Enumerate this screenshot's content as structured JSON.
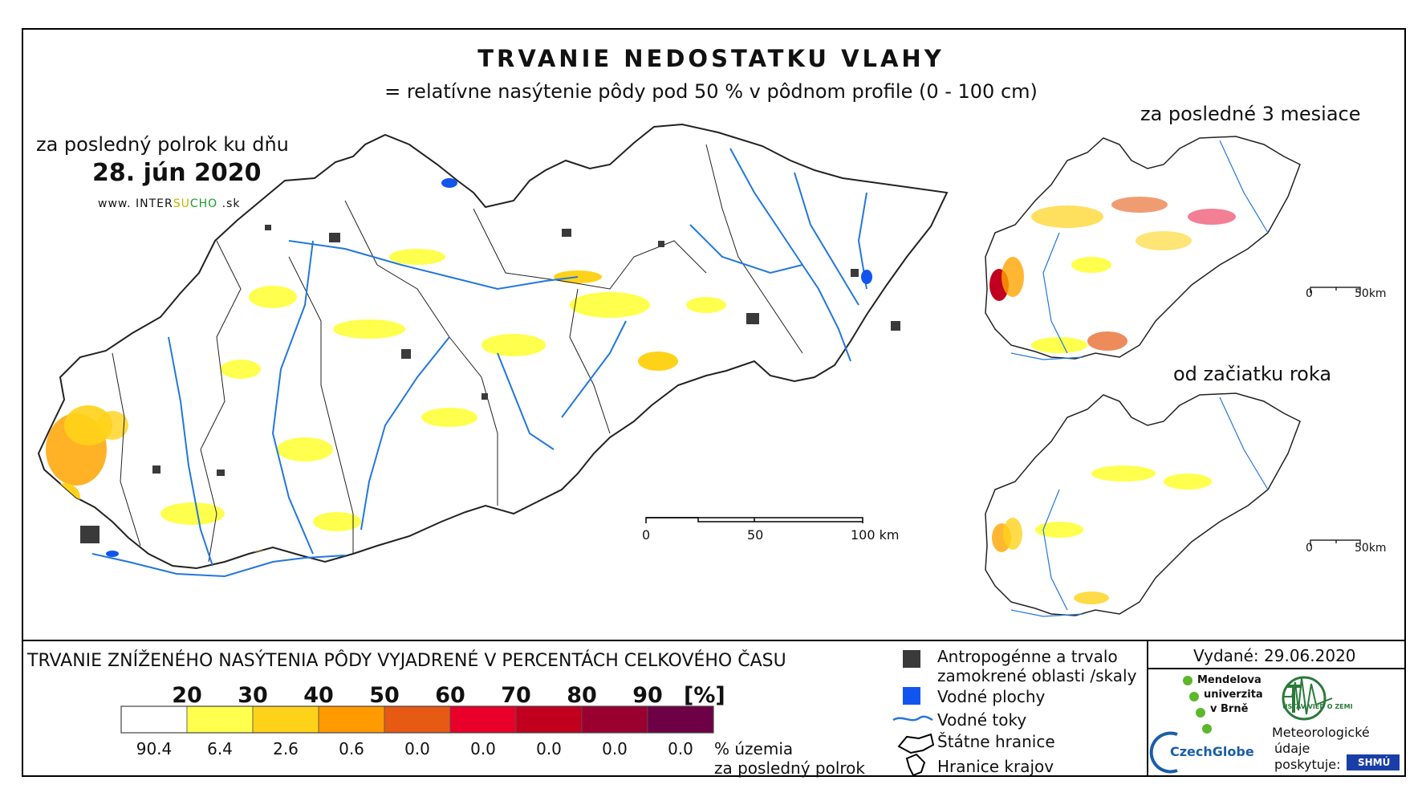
{
  "title": "TRVANIE NEDOSTATKU VLAHY",
  "subtitle": "= relatívne nasýtenie pôdy pod 50 % v pôdnom profile (0 - 100 cm)",
  "main_map": {
    "period_label": "za posledný polrok ku dňu",
    "date": "28. jún 2020",
    "website": {
      "prefix": "www. INTER",
      "su": "SU",
      "cho": "CHO",
      "suffix": " .sk"
    },
    "scalebar": {
      "labels": [
        "0",
        "50",
        "100 km"
      ]
    }
  },
  "inset_3months": {
    "title": "za posledné 3 mesiace",
    "scalebar": {
      "labels": [
        "0",
        "50km"
      ]
    }
  },
  "inset_year": {
    "title": "od začiatku roka",
    "scalebar": {
      "labels": [
        "0",
        "50km"
      ]
    }
  },
  "legend": {
    "title": "TRVANIE ZNÍŽENÉHO NASÝTENIA PÔDY VYJADRENÉ V PERCENTÁCH CELKOVÉHO ČASU",
    "thresholds": [
      "20",
      "30",
      "40",
      "50",
      "60",
      "70",
      "80",
      "90"
    ],
    "unit": "[%]",
    "colors": [
      "#ffffff",
      "#ffff4d",
      "#ffd21a",
      "#ff9a00",
      "#e65a14",
      "#e8002a",
      "#c0001e",
      "#990030",
      "#6e0045"
    ],
    "area_percent": [
      "90.4",
      "6.4",
      "2.6",
      "0.6",
      "0.0",
      "0.0",
      "0.0",
      "0.0",
      "0.0"
    ],
    "area_caption_line1": "% územia",
    "area_caption_line2": "za posledný polrok"
  },
  "symbol_legend": {
    "anthropogenic_line1": "Antropogénne a trvalo",
    "anthropogenic_line2": "zamokrené oblasti /skaly",
    "water_bodies": "Vodné plochy",
    "rivers": "Vodné toky",
    "state_border": "Štátne hranice",
    "region_border": "Hranice krajov",
    "colors": {
      "anthropogenic": "#3a3a3a",
      "water": "#1155ee",
      "river": "#2277dd"
    }
  },
  "footer": {
    "issued": "Vydané: 29.06.2020",
    "mendel_line1": "Mendelova",
    "mendel_line2": "univerzita",
    "mendel_line3": "v Brně",
    "czechglobe": "CzechGlobe",
    "ustav": "ÚSTAV VIED O ZEMI",
    "meteo_line1": "Meteorologické",
    "meteo_line2": "údaje",
    "meteo_line3": "poskytuje:",
    "shmu": "SHMÚ"
  }
}
